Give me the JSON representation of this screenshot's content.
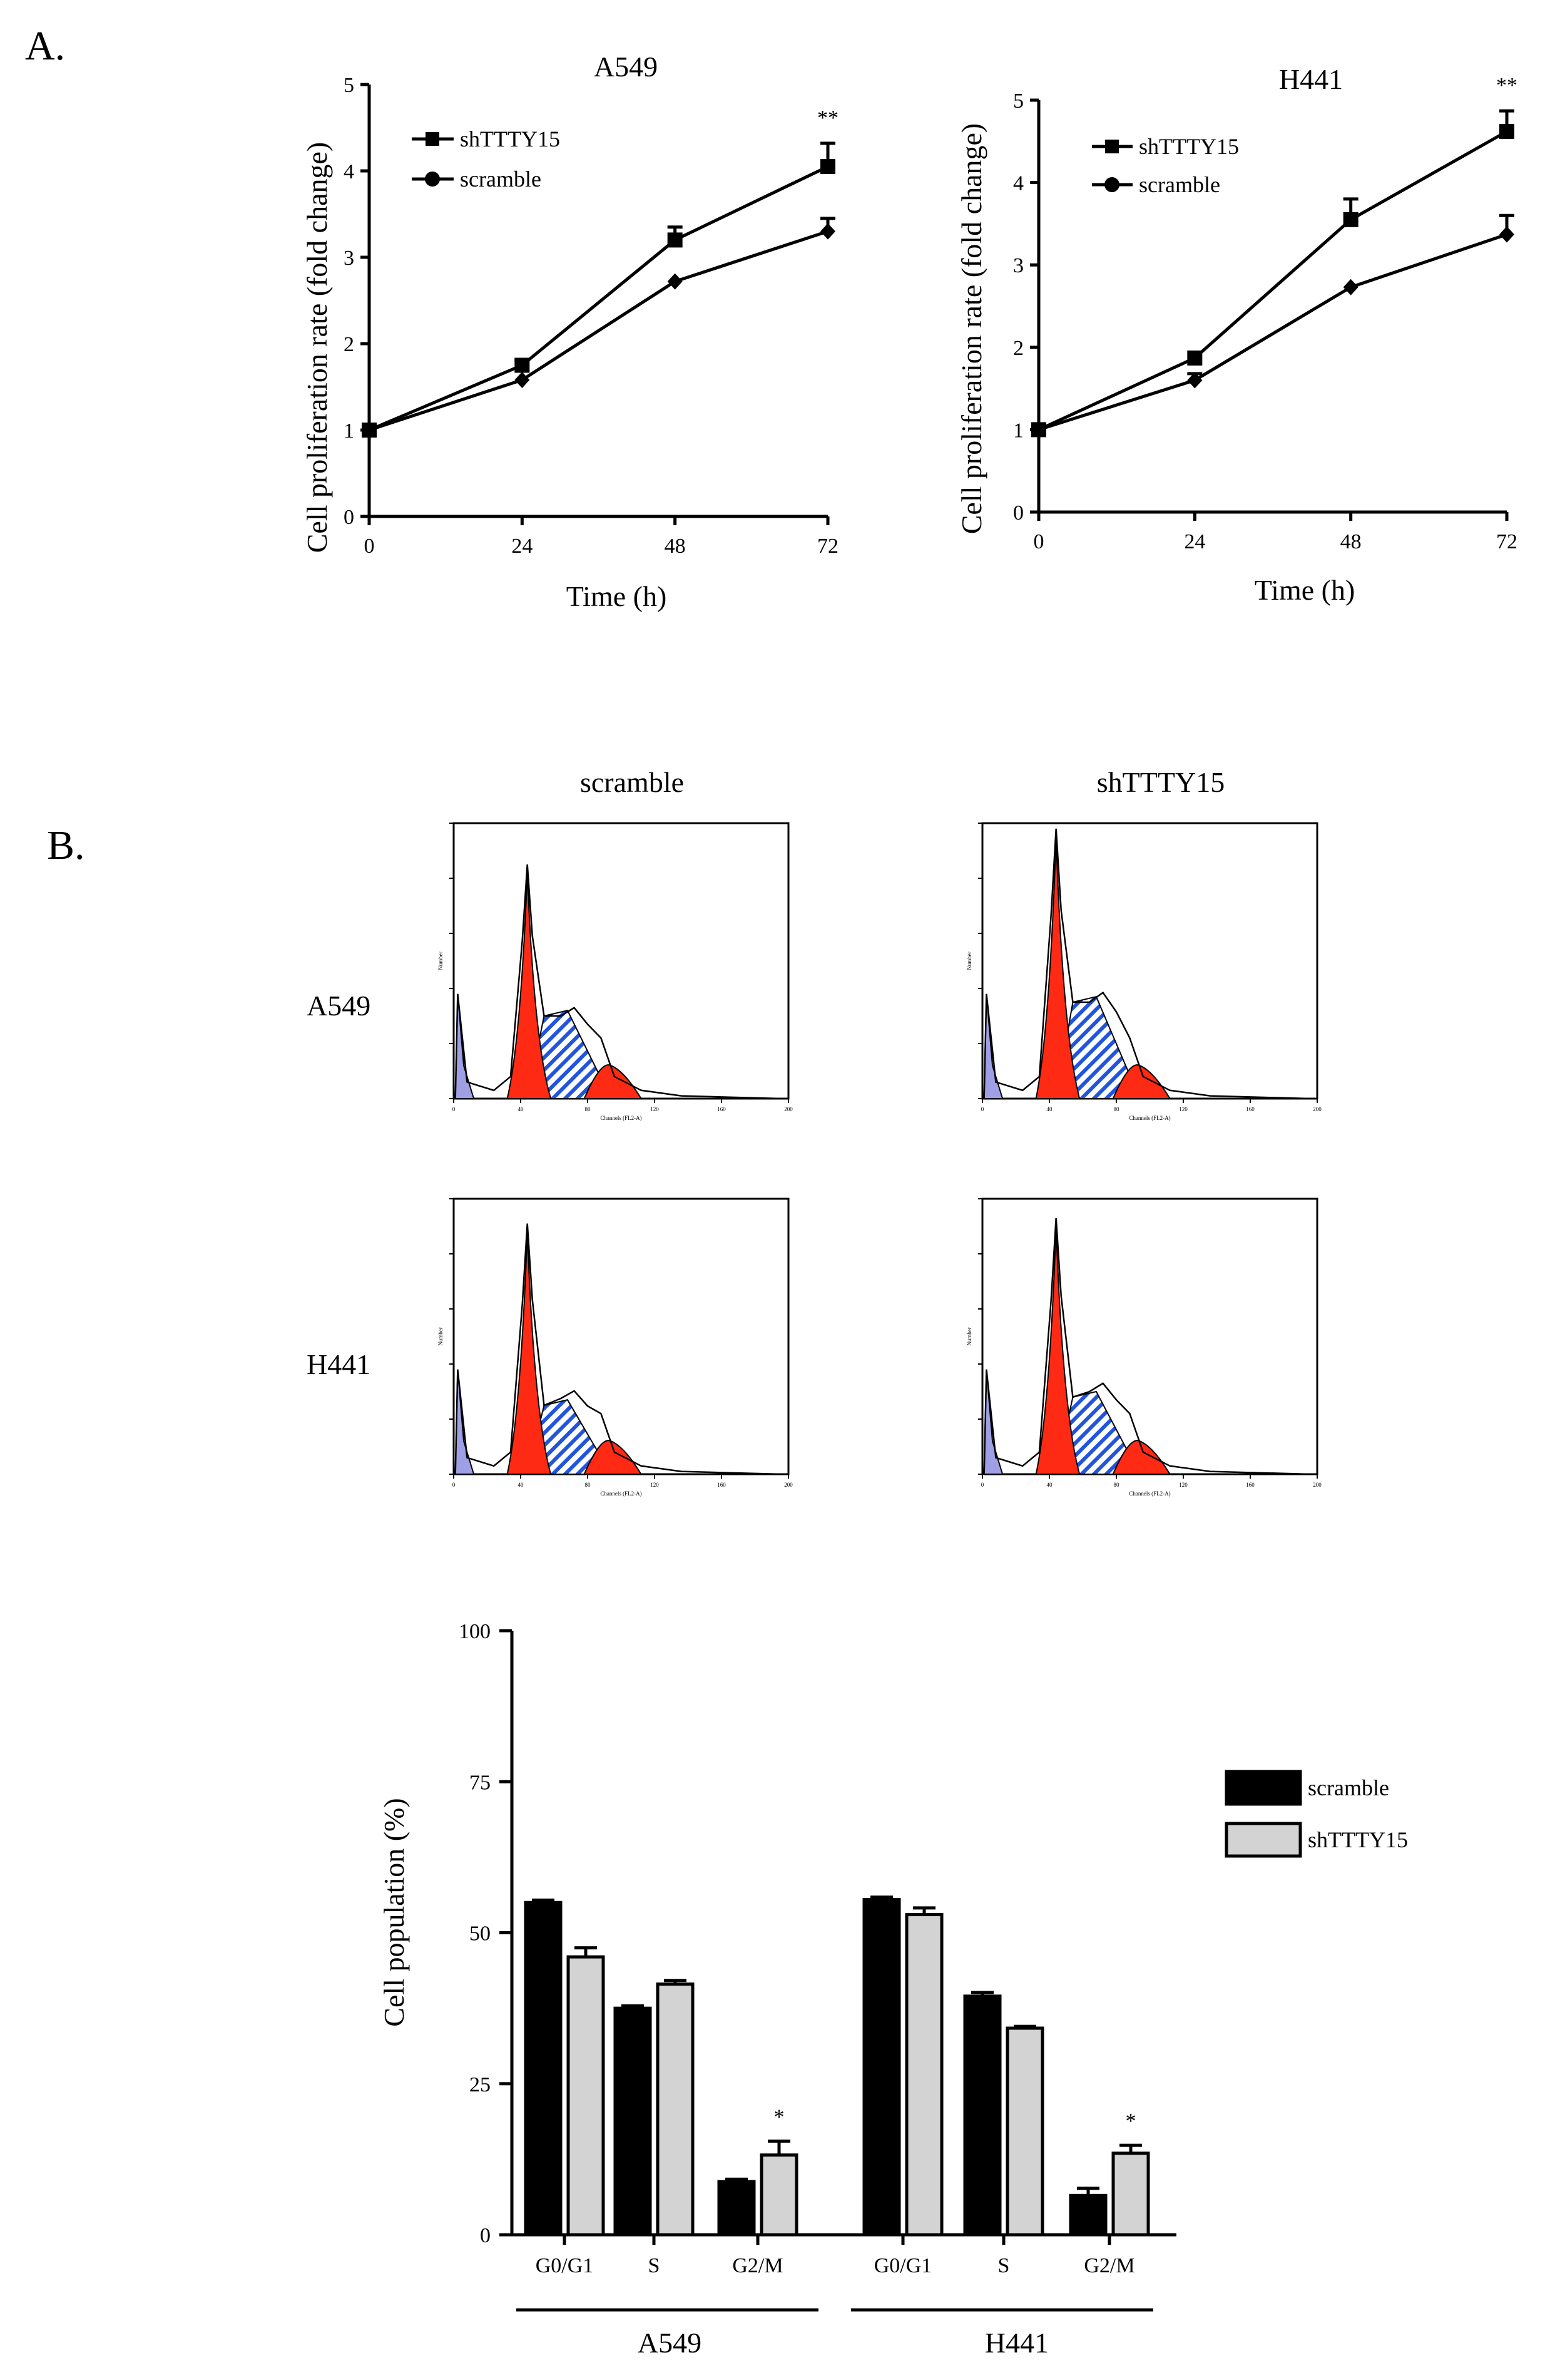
{
  "panels": {
    "a_label": "A.",
    "b_label": "B."
  },
  "line_charts": [
    {
      "id": "a549",
      "title": "A549",
      "xlabel": "Time (h)",
      "ylabel": "Cell proliferation rate (fold change)",
      "xticks": [
        "0",
        "24",
        "48",
        "72"
      ],
      "yticks": [
        "0",
        "1",
        "2",
        "3",
        "4",
        "5"
      ],
      "significance": "**",
      "legend": [
        "shTTTY15",
        "scramble"
      ]
    },
    {
      "id": "h441",
      "title": "H441",
      "xlabel": "Time (h)",
      "ylabel": "Cell proliferation rate (fold change)",
      "xticks": [
        "0",
        "24",
        "48",
        "72"
      ],
      "yticks": [
        "0",
        "1",
        "2",
        "3",
        "4",
        "5"
      ],
      "significance": "**",
      "legend": [
        "shTTTY15",
        "scramble"
      ]
    }
  ],
  "flow": {
    "col_labels": [
      "scramble",
      "shTTTY15"
    ],
    "row_labels": [
      "A549",
      "H441"
    ],
    "ylabel": "Number",
    "xlabel": "Channels (FL2-A)",
    "tick_labels": [
      "0",
      "40",
      "80",
      "120",
      "160",
      "200"
    ],
    "colors": {
      "g1": "#ff2a14",
      "s_stripe": "#2255dd",
      "debris": "#9f9fe6"
    }
  },
  "bar": {
    "ylabel": "Cell population (%)",
    "yticks": [
      "0",
      "25",
      "50",
      "75",
      "100"
    ],
    "xticks": [
      "G0/G1",
      "S",
      "G2/M",
      "G0/G1",
      "S",
      "G2/M"
    ],
    "groups": [
      "A549",
      "H441"
    ],
    "legend": [
      "scramble",
      "shTTTY15"
    ],
    "stars": [
      "*",
      "*"
    ]
  },
  "chart_data": [
    {
      "type": "line",
      "title": "A549",
      "xlabel": "Time (h)",
      "ylabel": "Cell proliferation rate (fold change)",
      "x": [
        0,
        24,
        48,
        72
      ],
      "xlim": [
        0,
        72
      ],
      "ylim": [
        0,
        5
      ],
      "series": [
        {
          "name": "shTTTY15",
          "marker": "square",
          "values": [
            1.0,
            1.75,
            3.2,
            4.05
          ],
          "errors": [
            0.02,
            0.06,
            0.15,
            0.27
          ]
        },
        {
          "name": "scramble",
          "marker": "diamond",
          "values": [
            1.0,
            1.58,
            2.72,
            3.3
          ],
          "errors": [
            0.02,
            0.03,
            0.03,
            0.15
          ]
        }
      ],
      "annotations": [
        {
          "x": 72,
          "text": "**"
        }
      ]
    },
    {
      "type": "line",
      "title": "H441",
      "xlabel": "Time (h)",
      "ylabel": "Cell proliferation rate (fold change)",
      "x": [
        0,
        24,
        48,
        72
      ],
      "xlim": [
        0,
        72
      ],
      "ylim": [
        0,
        5
      ],
      "series": [
        {
          "name": "shTTTY15",
          "marker": "square",
          "values": [
            1.0,
            1.87,
            3.55,
            4.62
          ],
          "errors": [
            0.02,
            0.03,
            0.25,
            0.25
          ]
        },
        {
          "name": "scramble",
          "marker": "diamond",
          "values": [
            1.0,
            1.6,
            2.73,
            3.37
          ],
          "errors": [
            0.02,
            0.08,
            0.03,
            0.23
          ]
        }
      ],
      "annotations": [
        {
          "x": 72,
          "text": "**"
        }
      ]
    },
    {
      "type": "bar",
      "title": "",
      "xlabel": "",
      "ylabel": "Cell population (%)",
      "ylim": [
        0,
        100
      ],
      "categories": [
        "G0/G1",
        "S",
        "G2/M",
        "G0/G1",
        "S",
        "G2/M"
      ],
      "groups": [
        "A549",
        "A549",
        "A549",
        "H441",
        "H441",
        "H441"
      ],
      "series": [
        {
          "name": "scramble",
          "color": "#000000",
          "values": [
            55,
            37.5,
            8.8,
            55.5,
            39.5,
            6.5
          ],
          "errors": [
            0.4,
            0.4,
            0.4,
            0.4,
            0.6,
            1.2
          ]
        },
        {
          "name": "shTTTY15",
          "color": "#d3d3d3",
          "values": [
            46,
            41.5,
            13.2,
            53,
            34.2,
            13.5
          ],
          "errors": [
            1.5,
            0.6,
            2.3,
            1.1,
            0.3,
            1.3
          ]
        }
      ],
      "annotations": [
        {
          "category_index": 2,
          "text": "*"
        },
        {
          "category_index": 5,
          "text": "*"
        }
      ]
    }
  ]
}
